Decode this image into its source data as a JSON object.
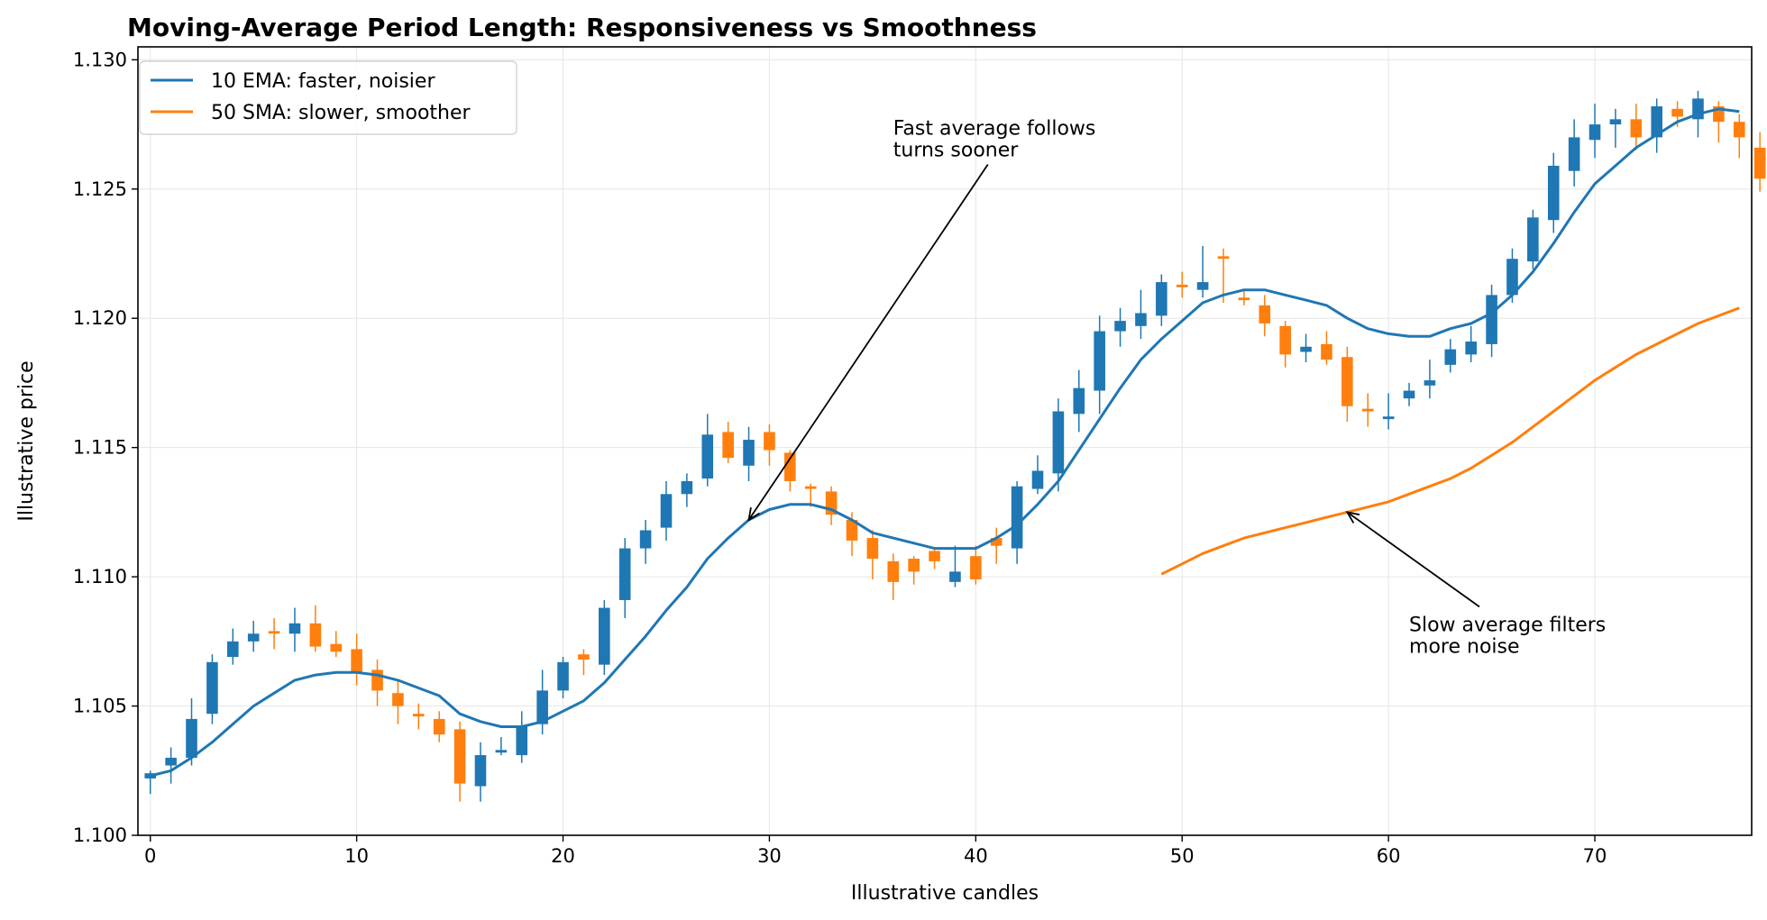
{
  "chart_data": {
    "type": "line",
    "title": "Moving-Average Period Length: Responsiveness vs Smoothness",
    "xlabel": "Illustrative candles",
    "ylabel": "Illustrative price",
    "xlim": [
      -0.6,
      77.6
    ],
    "ylim": [
      1.1,
      1.1305
    ],
    "x_ticks": [
      0,
      10,
      20,
      30,
      40,
      50,
      60,
      70
    ],
    "x_tick_labels": [
      "0",
      "10",
      "20",
      "30",
      "40",
      "50",
      "60",
      "70"
    ],
    "y_ticks": [
      1.1,
      1.105,
      1.11,
      1.115,
      1.12,
      1.125,
      1.13
    ],
    "y_tick_labels": [
      "1.100",
      "1.105",
      "1.110",
      "1.115",
      "1.120",
      "1.125",
      "1.130"
    ],
    "grid": true,
    "legend_position": "top-left",
    "colors": {
      "up": "#1f77b4",
      "down": "#ff7f0e",
      "ema": "#1f77b4",
      "sma": "#ff7f0e"
    },
    "series": [
      {
        "name": "10 EMA: faster, noisier",
        "type": "line",
        "x_start": 0,
        "values": [
          1.1023,
          1.1025,
          1.103,
          1.1036,
          1.1043,
          1.105,
          1.1055,
          1.106,
          1.1062,
          1.1063,
          1.1063,
          1.1062,
          1.106,
          1.1057,
          1.1054,
          1.1047,
          1.1044,
          1.1042,
          1.1042,
          1.1044,
          1.1048,
          1.1052,
          1.1059,
          1.1068,
          1.1077,
          1.1087,
          1.1096,
          1.1107,
          1.1115,
          1.1122,
          1.1126,
          1.1128,
          1.1128,
          1.1126,
          1.1122,
          1.1117,
          1.1115,
          1.1113,
          1.1111,
          1.1111,
          1.1111,
          1.1115,
          1.112,
          1.1128,
          1.1137,
          1.1149,
          1.1161,
          1.1173,
          1.1184,
          1.1192,
          1.1199,
          1.1206,
          1.1209,
          1.1211,
          1.1211,
          1.1209,
          1.1207,
          1.1205,
          1.12,
          1.1196,
          1.1194,
          1.1193,
          1.1193,
          1.1196,
          1.1198,
          1.1202,
          1.1209,
          1.1218,
          1.1229,
          1.1241,
          1.1252,
          1.1259,
          1.1266,
          1.1271,
          1.1276,
          1.1279,
          1.1281,
          1.128
        ]
      },
      {
        "name": "50 SMA: slower, smoother",
        "type": "line",
        "x_start": 49,
        "values": [
          1.1101,
          1.1105,
          1.1109,
          1.1112,
          1.1115,
          1.1117,
          1.1119,
          1.1121,
          1.1123,
          1.1125,
          1.1127,
          1.1129,
          1.1132,
          1.1135,
          1.1138,
          1.1142,
          1.1147,
          1.1152,
          1.1158,
          1.1164,
          1.117,
          1.1176,
          1.1181,
          1.1186,
          1.119,
          1.1194,
          1.1198,
          1.1201,
          1.1204
        ]
      }
    ],
    "candles": {
      "open": [
        1.1022,
        1.1027,
        1.103,
        1.1047,
        1.1069,
        1.1075,
        1.1079,
        1.1078,
        1.1082,
        1.1074,
        1.1072,
        1.1064,
        1.1055,
        1.1047,
        1.1045,
        1.1041,
        1.1019,
        1.1032,
        1.1031,
        1.1043,
        1.1056,
        1.107,
        1.1066,
        1.1091,
        1.1111,
        1.1119,
        1.1132,
        1.1138,
        1.1156,
        1.1143,
        1.1156,
        1.1148,
        1.1135,
        1.1133,
        1.1122,
        1.1115,
        1.1106,
        1.1107,
        1.111,
        1.1098,
        1.1108,
        1.1115,
        1.1111,
        1.1134,
        1.114,
        1.1163,
        1.1172,
        1.1195,
        1.1197,
        1.1201,
        1.1213,
        1.1211,
        1.1224,
        1.1208,
        1.1205,
        1.1197,
        1.1187,
        1.119,
        1.1185,
        1.1165,
        1.1161,
        1.1169,
        1.1174,
        1.1182,
        1.1186,
        1.119,
        1.1209,
        1.1222,
        1.1238,
        1.1257,
        1.1269,
        1.1275,
        1.1277,
        1.127,
        1.1281,
        1.1277,
        1.1282,
        1.1276,
        1.1266
      ],
      "close": [
        1.1024,
        1.103,
        1.1045,
        1.1067,
        1.1075,
        1.1078,
        1.1078,
        1.1082,
        1.1073,
        1.1071,
        1.1063,
        1.1056,
        1.105,
        1.1046,
        1.1039,
        1.102,
        1.1031,
        1.1033,
        1.1042,
        1.1056,
        1.1067,
        1.1068,
        1.1088,
        1.1111,
        1.1118,
        1.1132,
        1.1137,
        1.1155,
        1.1146,
        1.1153,
        1.1149,
        1.1137,
        1.1134,
        1.1124,
        1.1114,
        1.1107,
        1.1098,
        1.1102,
        1.1106,
        1.1102,
        1.1099,
        1.1112,
        1.1135,
        1.1141,
        1.1164,
        1.1173,
        1.1195,
        1.1199,
        1.1202,
        1.1214,
        1.1212,
        1.1214,
        1.1223,
        1.1207,
        1.1198,
        1.1186,
        1.1189,
        1.1184,
        1.1166,
        1.1164,
        1.1162,
        1.1172,
        1.1176,
        1.1188,
        1.1191,
        1.1209,
        1.1223,
        1.1239,
        1.1259,
        1.127,
        1.1275,
        1.1277,
        1.127,
        1.1282,
        1.1278,
        1.1285,
        1.1276,
        1.127,
        1.1254
      ],
      "high": [
        1.1025,
        1.1034,
        1.1053,
        1.107,
        1.108,
        1.1083,
        1.1084,
        1.1088,
        1.1089,
        1.1079,
        1.1078,
        1.1068,
        1.106,
        1.1051,
        1.1048,
        1.1044,
        1.1036,
        1.1038,
        1.1048,
        1.1064,
        1.1069,
        1.1072,
        1.1091,
        1.1115,
        1.1122,
        1.1137,
        1.114,
        1.1163,
        1.116,
        1.1158,
        1.1159,
        1.1149,
        1.1136,
        1.1135,
        1.1125,
        1.1118,
        1.1109,
        1.1108,
        1.1111,
        1.1112,
        1.1112,
        1.1119,
        1.1137,
        1.1147,
        1.1169,
        1.118,
        1.1201,
        1.1204,
        1.1211,
        1.1217,
        1.1218,
        1.1228,
        1.1227,
        1.1211,
        1.1209,
        1.1199,
        1.1194,
        1.1195,
        1.1189,
        1.1171,
        1.1171,
        1.1175,
        1.1184,
        1.1192,
        1.1197,
        1.1213,
        1.1227,
        1.1242,
        1.1264,
        1.1277,
        1.1283,
        1.1281,
        1.1283,
        1.1285,
        1.1284,
        1.1288,
        1.1284,
        1.1279,
        1.1272
      ],
      "low": [
        1.1016,
        1.102,
        1.1027,
        1.1043,
        1.1066,
        1.1071,
        1.1072,
        1.1071,
        1.1071,
        1.1069,
        1.1058,
        1.105,
        1.1043,
        1.1041,
        1.1036,
        1.1013,
        1.1013,
        1.1031,
        1.1028,
        1.1039,
        1.1053,
        1.1062,
        1.1062,
        1.1084,
        1.1105,
        1.1114,
        1.1127,
        1.1135,
        1.1144,
        1.1137,
        1.1143,
        1.1133,
        1.1127,
        1.112,
        1.1108,
        1.1099,
        1.1091,
        1.1097,
        1.1103,
        1.1096,
        1.1097,
        1.1105,
        1.1105,
        1.1132,
        1.1133,
        1.1156,
        1.1163,
        1.1189,
        1.1192,
        1.1197,
        1.1208,
        1.1208,
        1.1206,
        1.1205,
        1.1193,
        1.1181,
        1.1183,
        1.1182,
        1.116,
        1.1158,
        1.1157,
        1.1166,
        1.1169,
        1.1179,
        1.1183,
        1.1185,
        1.1206,
        1.1219,
        1.1233,
        1.1251,
        1.1262,
        1.1266,
        1.1265,
        1.1264,
        1.1274,
        1.127,
        1.1268,
        1.1262,
        1.1249
      ]
    },
    "annotations": [
      {
        "text": [
          "Fast average follows",
          "turns sooner"
        ],
        "text_x": 36,
        "text_y": 1.1271,
        "arrow_to_x": 29,
        "arrow_to_y": 1.1122
      },
      {
        "text": [
          "Slow average filters",
          "more noise"
        ],
        "text_x": 61,
        "text_y": 1.1079,
        "arrow_to_x": 58,
        "arrow_to_y": 1.1125
      }
    ]
  }
}
